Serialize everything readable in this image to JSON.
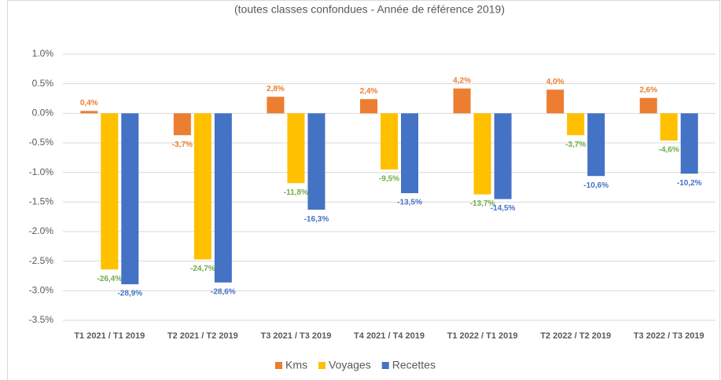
{
  "chart_data": {
    "type": "bar",
    "subtitle": "(toutes classes confondues - Année de référence 2019)",
    "categories": [
      "T1 2021 / T1 2019",
      "T2 2021 / T2 2019",
      "T3 2021 / T3 2019",
      "T4 2021 / T4 2019",
      "T1 2022 / T1 2019",
      "T2 2022 / T2 2019",
      "T3 2022 / T3 2019"
    ],
    "series": [
      {
        "name": "Kms",
        "color": "#ed7d31",
        "label_color": "#ed7d31",
        "values": [
          0.04,
          -0.37,
          0.28,
          0.24,
          0.42,
          0.4,
          0.26
        ],
        "value_labels": [
          "0,4%",
          "-3,7%",
          "2,8%",
          "2,4%",
          "4,2%",
          "4,0%",
          "2,6%"
        ]
      },
      {
        "name": "Voyages",
        "color": "#ffc000",
        "label_color": "#70ad47",
        "values": [
          -2.64,
          -2.47,
          -1.18,
          -0.95,
          -1.37,
          -0.37,
          -0.46
        ],
        "value_labels": [
          "-26,4%",
          "-24,7%",
          "-11,8%",
          "-9,5%",
          "-13,7%",
          "-3,7%",
          "-4,6%"
        ]
      },
      {
        "name": "Recettes",
        "color": "#4472c4",
        "label_color": "#4472c4",
        "values": [
          -2.89,
          -2.86,
          -1.63,
          -1.35,
          -1.45,
          -1.06,
          -1.02
        ],
        "value_labels": [
          "-28,9%",
          "-28,6%",
          "-16,3%",
          "-13,5%",
          "-14,5%",
          "-10,6%",
          "-10,2%"
        ]
      }
    ],
    "ylim": [
      -3.5,
      1.0
    ],
    "yticks": [
      {
        "value": 1.0,
        "label": "1.0%"
      },
      {
        "value": 0.5,
        "label": "0.5%"
      },
      {
        "value": 0.0,
        "label": "0.0%"
      },
      {
        "value": -0.5,
        "label": "-0.5%"
      },
      {
        "value": -1.0,
        "label": "-1.0%"
      },
      {
        "value": -1.5,
        "label": "-1.5%"
      },
      {
        "value": -2.0,
        "label": "-2.0%"
      },
      {
        "value": -2.5,
        "label": "-2.5%"
      },
      {
        "value": -3.0,
        "label": "-3.0%"
      },
      {
        "value": -3.5,
        "label": "-3.5%"
      }
    ],
    "grid": true
  }
}
